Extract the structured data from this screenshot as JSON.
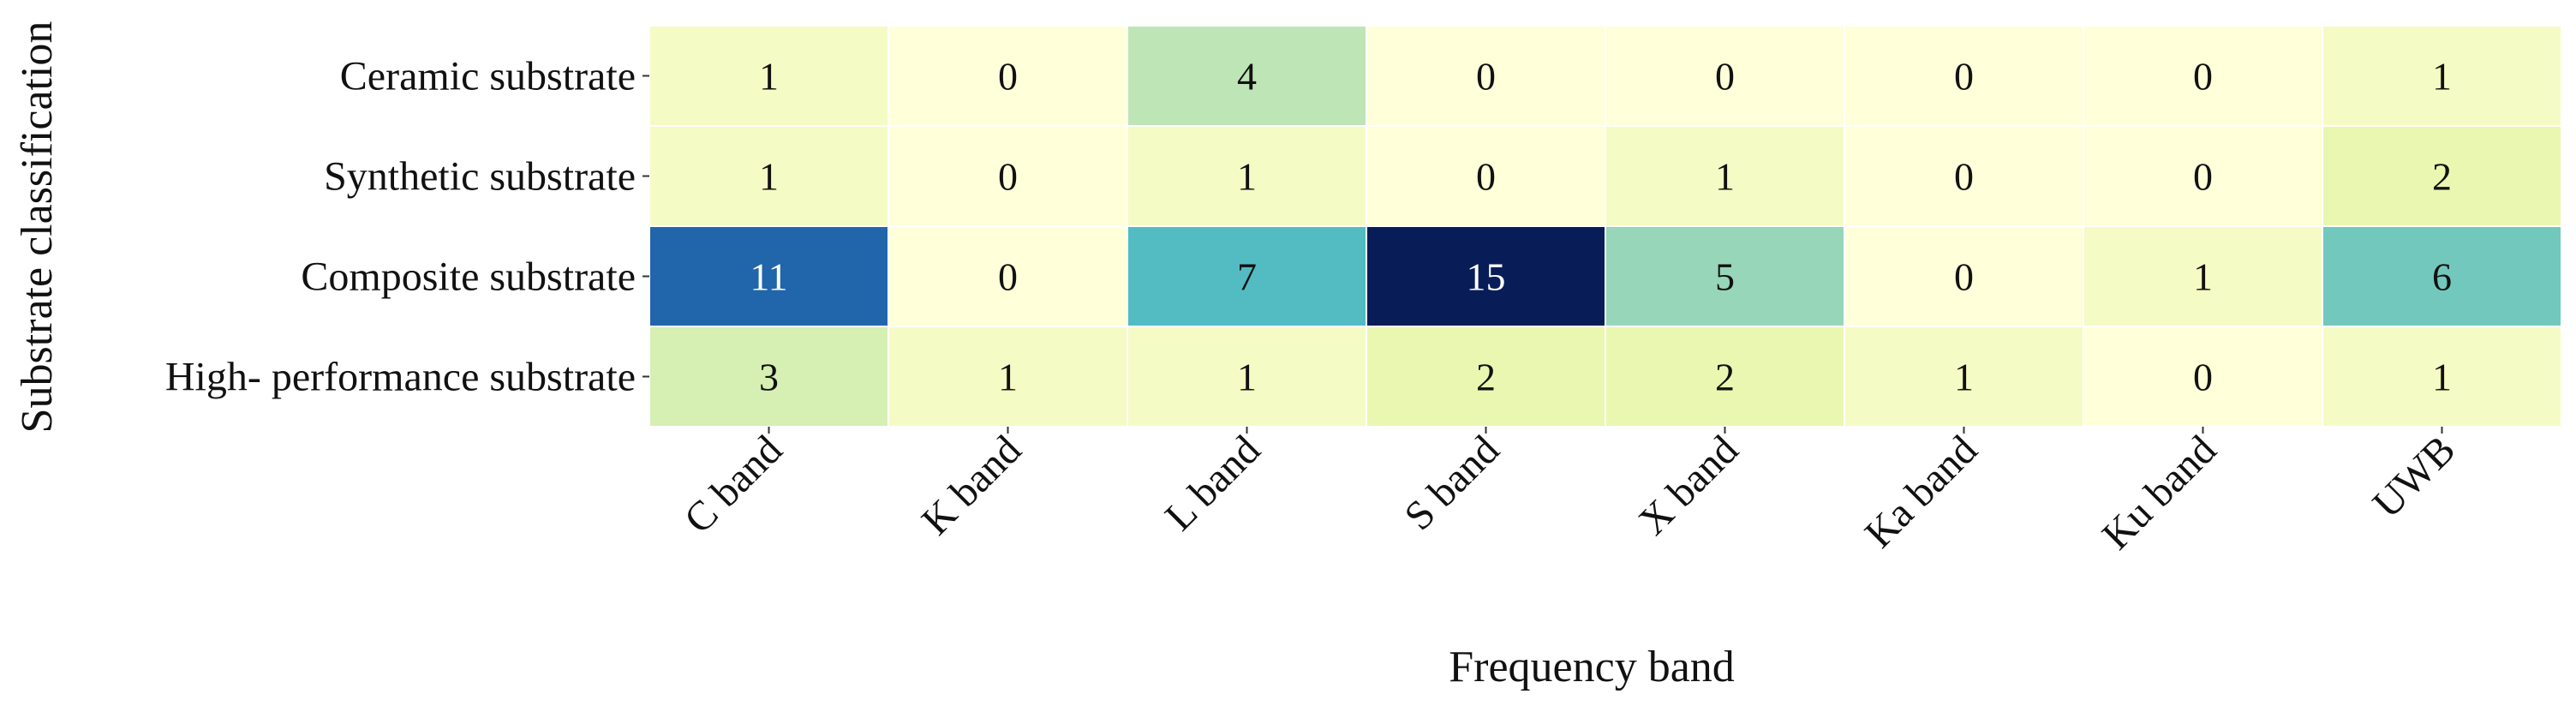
{
  "chart_data": {
    "type": "heatmap",
    "xlabel": "Frequency band",
    "ylabel": "Substrate classification",
    "x_categories": [
      "C band",
      "K band",
      "L band",
      "S band",
      "X band",
      "Ka band",
      "Ku band",
      "UWB"
    ],
    "y_categories": [
      "Ceramic substrate",
      "Synthetic substrate",
      "Composite substrate",
      "High- performance substrate"
    ],
    "values": [
      [
        1,
        0,
        4,
        0,
        0,
        0,
        0,
        1
      ],
      [
        1,
        0,
        1,
        0,
        1,
        0,
        0,
        2
      ],
      [
        11,
        0,
        7,
        15,
        5,
        0,
        1,
        6
      ],
      [
        3,
        1,
        1,
        2,
        2,
        1,
        0,
        1
      ]
    ],
    "value_range": [
      0,
      15
    ],
    "colormap": "YlGnBu",
    "colorbar": false,
    "cell_labels": true,
    "x_tick_rotation": -45
  }
}
